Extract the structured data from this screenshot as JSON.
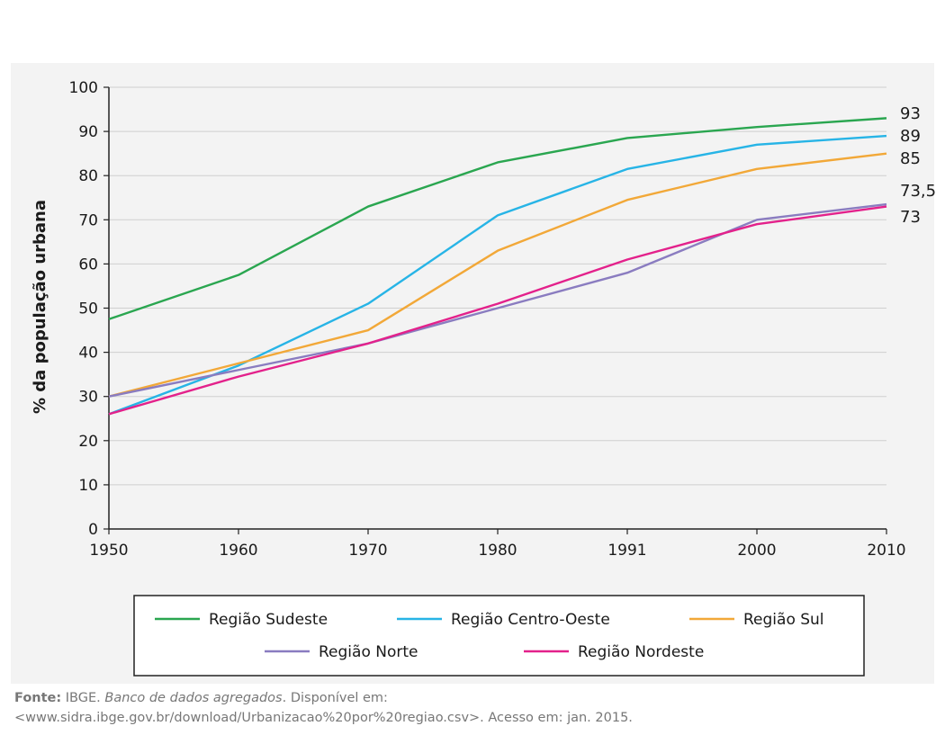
{
  "chart_data": {
    "type": "line",
    "x": [
      "1950",
      "1960",
      "1970",
      "1980",
      "1991",
      "2000",
      "2010"
    ],
    "ylabel": "% da população urbana",
    "ylim": [
      0,
      100
    ],
    "yticks": [
      "0",
      "10",
      "20",
      "30",
      "40",
      "50",
      "60",
      "70",
      "80",
      "90",
      "100"
    ],
    "grid": true,
    "legend_position": "bottom",
    "series": [
      {
        "name": "Região Sudeste",
        "color": "#2aa650",
        "values": [
          47.5,
          57.5,
          73,
          83,
          88.5,
          91,
          93
        ],
        "end_label": "93"
      },
      {
        "name": "Região Centro-Oeste",
        "color": "#27b4e6",
        "values": [
          26,
          37,
          51,
          71,
          81.5,
          87,
          89
        ],
        "end_label": "89"
      },
      {
        "name": "Região Sul",
        "color": "#f2a838",
        "values": [
          30,
          37.5,
          45,
          63,
          74.5,
          81.5,
          85
        ],
        "end_label": "85"
      },
      {
        "name": "Região Norte",
        "color": "#8a7cc0",
        "values": [
          30,
          36,
          42,
          50,
          58,
          70,
          73.5
        ],
        "end_label": "73,5"
      },
      {
        "name": "Região Nordeste",
        "color": "#e3218b",
        "values": [
          26,
          34.5,
          42,
          51,
          61,
          69,
          73
        ],
        "end_label": "73"
      }
    ]
  },
  "source": {
    "prefix": "Fonte:",
    "org": " IBGE. ",
    "title": "Banco de dados agregados",
    "rest": ". Disponível em:",
    "url_line": "<www.sidra.ibge.gov.br/download/Urbanizacao%20por%20regiao.csv>. Acesso em: jan. 2015."
  }
}
